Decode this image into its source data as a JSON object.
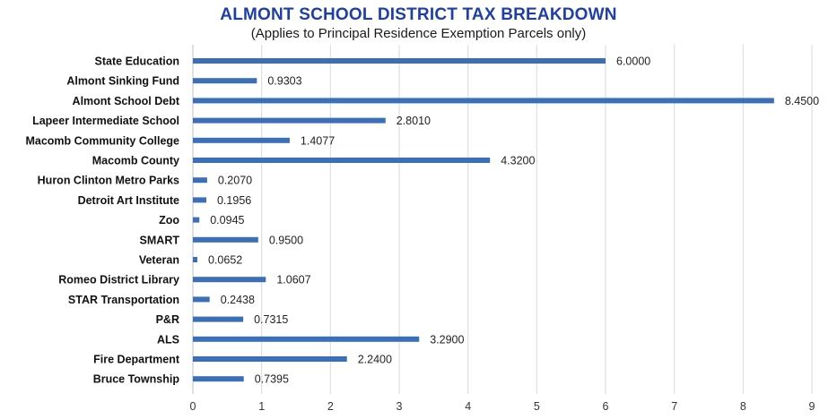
{
  "chart_data": {
    "type": "bar",
    "orientation": "horizontal",
    "title": "ALMONT SCHOOL DISTRICT TAX BREAKDOWN",
    "subtitle": "(Applies to Principal Residence Exemption Parcels only)",
    "categories": [
      "State Education",
      "Almont Sinking Fund",
      "Almont School Debt",
      "Lapeer Intermediate School",
      "Macomb Community College",
      "Macomb County",
      "Huron Clinton Metro Parks",
      "Detroit Art Institute",
      "Zoo",
      "SMART",
      "Veteran",
      "Romeo District Library",
      "STAR Transportation",
      "P&R",
      "ALS",
      "Fire Department",
      "Bruce Township"
    ],
    "values": [
      6.0,
      0.9303,
      8.45,
      2.801,
      1.4077,
      4.32,
      0.207,
      0.1956,
      0.0945,
      0.95,
      0.0652,
      1.0607,
      0.2438,
      0.7315,
      3.29,
      2.24,
      0.7395
    ],
    "value_labels": [
      "6.0000",
      "0.9303",
      "8.4500",
      "2.8010",
      "1.4077",
      "4.3200",
      "0.2070",
      "0.1956",
      "0.0945",
      "0.9500",
      "0.0652",
      "1.0607",
      "0.2438",
      "0.7315",
      "3.2900",
      "2.2400",
      "0.7395"
    ],
    "xlim": [
      0,
      9
    ],
    "xticks": [
      "0",
      "1",
      "2",
      "3",
      "4",
      "5",
      "6",
      "7",
      "8",
      "9"
    ],
    "xlabel": "",
    "ylabel": "",
    "grid": true,
    "legend": "none",
    "bar_color": "#3b6fb8"
  }
}
